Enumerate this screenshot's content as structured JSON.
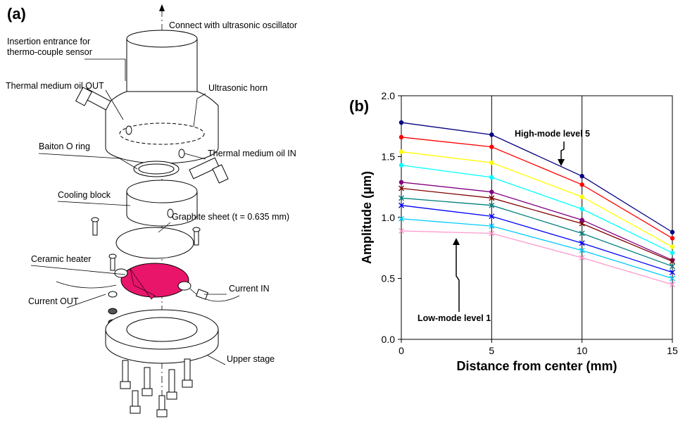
{
  "diagram": {
    "label": "(a)",
    "top_note": "Connect with ultrasonic oscillator",
    "parts": [
      {
        "lines": [
          "Insertion entrance for",
          "thermo-couple sensor"
        ]
      },
      {
        "lines": [
          "Thermal medium oil OUT"
        ]
      },
      {
        "lines": [
          "Ultrasonic horn"
        ]
      },
      {
        "lines": [
          "Baiton O ring"
        ]
      },
      {
        "lines": [
          "Thermal medium oil IN"
        ]
      },
      {
        "lines": [
          "Cooling block"
        ]
      },
      {
        "lines": [
          "Graphite sheet (t = 0.635 mm)"
        ]
      },
      {
        "lines": [
          "Ceramic heater"
        ]
      },
      {
        "lines": [
          "Current IN"
        ]
      },
      {
        "lines": [
          "Current OUT"
        ]
      },
      {
        "lines": [
          "Upper stage"
        ]
      }
    ]
  },
  "chart_data": {
    "type": "line",
    "label": "(b)",
    "x_label": "Distance from center (mm)",
    "y_label": "Amplitude (μm)",
    "x": [
      0,
      5,
      10,
      15
    ],
    "xlim": [
      0,
      15
    ],
    "xticks": [
      0,
      5,
      10,
      15
    ],
    "ylim": [
      0,
      2
    ],
    "yticks": [
      {
        "value": 0,
        "label": "0.0"
      },
      0.5,
      {
        "value": 1,
        "label": "1.0"
      },
      1.5,
      {
        "value": 2,
        "label": "2.0"
      }
    ],
    "grid": "x",
    "series": [
      {
        "color": "#000080",
        "marker": "circle",
        "values": [
          1.78,
          1.68,
          1.34,
          0.88
        ]
      },
      {
        "color": "#ff0000",
        "marker": "circle",
        "values": [
          1.66,
          1.58,
          1.27,
          0.83
        ]
      },
      {
        "color": "#ffff00",
        "marker": "circle",
        "values": [
          1.54,
          1.45,
          1.17,
          0.76
        ]
      },
      {
        "color": "#00ffff",
        "marker": "circle",
        "values": [
          1.43,
          1.33,
          1.07,
          0.71
        ]
      },
      {
        "color": "#800080",
        "marker": "circle",
        "values": [
          1.29,
          1.21,
          0.98,
          0.65
        ]
      },
      {
        "color": "#800000",
        "marker": "x",
        "values": [
          1.24,
          1.16,
          0.95,
          0.64
        ]
      },
      {
        "color": "#008080",
        "marker": "x",
        "values": [
          1.16,
          1.1,
          0.87,
          0.6
        ]
      },
      {
        "color": "#0000ff",
        "marker": "x",
        "values": [
          1.1,
          1.01,
          0.79,
          0.55
        ]
      },
      {
        "color": "#00ccff",
        "marker": "x",
        "values": [
          0.99,
          0.93,
          0.73,
          0.5
        ]
      },
      {
        "color": "#ff99cc",
        "marker": "x",
        "values": [
          0.89,
          0.87,
          0.67,
          0.45
        ]
      }
    ],
    "annotations": [
      "High-mode level 5",
      "Low-mode level 1"
    ]
  }
}
